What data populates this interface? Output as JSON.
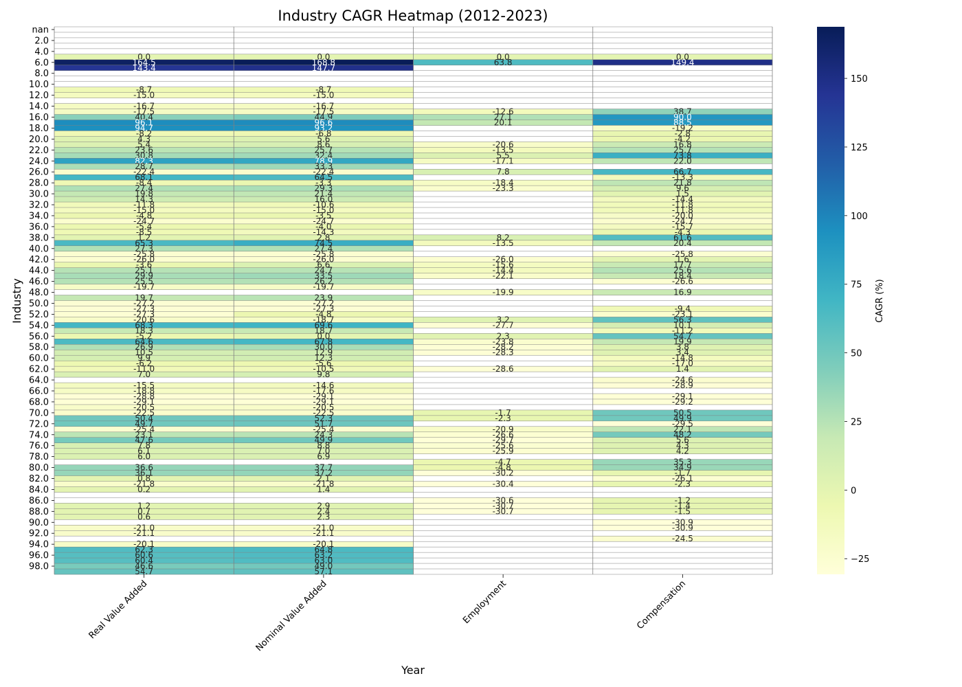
{
  "chart_data": {
    "type": "heatmap",
    "title": "Industry CAGR Heatmap (2012-2023)",
    "xlabel": "Year",
    "ylabel": "Industry",
    "colorbar_label": "CAGR (%)",
    "colorbar_ticks": [
      "−25",
      "0",
      "25",
      "50",
      "75",
      "100",
      "125",
      "150"
    ],
    "colorbar_tick_values": [
      -25,
      0,
      25,
      50,
      75,
      100,
      125,
      150
    ],
    "vmin": -30.7,
    "vmax": 168.8,
    "colormap": "YlGnBu",
    "colormap_stops": [
      "#ffffd9",
      "#edf8b1",
      "#c7e9b4",
      "#7fcdbb",
      "#41b6c4",
      "#1d91c0",
      "#225ea8",
      "#253494",
      "#081d58"
    ],
    "annotation_colors": {
      "dark": "#262626",
      "light": "#ffffff"
    },
    "gridline_color": "#808080",
    "columns": [
      "Real Value Added",
      "Nominal Value Added",
      "Employment",
      "Compensation"
    ],
    "row_tick_labels": [
      "nan",
      "2.0",
      "4.0",
      "6.0",
      "8.0",
      "10.0",
      "12.0",
      "14.0",
      "16.0",
      "18.0",
      "20.0",
      "22.0",
      "24.0",
      "26.0",
      "28.0",
      "30.0",
      "32.0",
      "34.0",
      "36.0",
      "38.0",
      "40.0",
      "42.0",
      "44.0",
      "46.0",
      "48.0",
      "50.0",
      "52.0",
      "54.0",
      "56.0",
      "58.0",
      "60.0",
      "62.0",
      "64.0",
      "66.0",
      "68.0",
      "70.0",
      "72.0",
      "74.0",
      "76.0",
      "78.0",
      "80.0",
      "82.0",
      "84.0",
      "86.0",
      "88.0",
      "90.0",
      "92.0",
      "94.0",
      "96.0",
      "98.0"
    ],
    "values": [
      [
        null,
        null,
        null,
        null
      ],
      [
        null,
        null,
        null,
        null
      ],
      [
        null,
        null,
        null,
        null
      ],
      [
        null,
        null,
        null,
        null
      ],
      [
        null,
        null,
        null,
        null
      ],
      [
        0.0,
        0.0,
        0.0,
        0.0
      ],
      [
        164.5,
        168.8,
        63.8,
        149.4
      ],
      [
        143.4,
        147.7,
        null,
        null
      ],
      [
        null,
        null,
        null,
        null
      ],
      [
        null,
        null,
        null,
        null
      ],
      [
        null,
        null,
        null,
        null
      ],
      [
        -8.7,
        -8.7,
        null,
        null
      ],
      [
        -15.0,
        -15.0,
        null,
        null
      ],
      [
        null,
        null,
        null,
        null
      ],
      [
        -16.7,
        -16.7,
        null,
        null
      ],
      [
        -17.5,
        -17.5,
        -12.6,
        38.7
      ],
      [
        40.4,
        44.9,
        27.1,
        90.0
      ],
      [
        96.1,
        96.6,
        20.1,
        88.5
      ],
      [
        94.7,
        93.2,
        null,
        -19.2
      ],
      [
        -8.2,
        -6.8,
        null,
        -2.8
      ],
      [
        4.3,
        5.6,
        null,
        -4.2
      ],
      [
        5.4,
        8.6,
        -20.6,
        16.8
      ],
      [
        23.6,
        25.7,
        -13.5,
        25.7
      ],
      [
        30.8,
        32.4,
        5.5,
        73.8
      ],
      [
        82.3,
        78.9,
        -17.1,
        22.0
      ],
      [
        28.7,
        33.3,
        null,
        null
      ],
      [
        -22.4,
        -22.4,
        7.8,
        66.7
      ],
      [
        68.1,
        64.5,
        null,
        -13.3
      ],
      [
        -8.4,
        -3.3,
        -18.4,
        21.8
      ],
      [
        27.4,
        29.3,
        -23.3,
        9.6
      ],
      [
        19.8,
        21.4,
        null,
        1.5
      ],
      [
        14.3,
        16.0,
        null,
        -14.4
      ],
      [
        -11.8,
        -10.6,
        null,
        -11.8
      ],
      [
        -15.0,
        -15.0,
        null,
        -11.8
      ],
      [
        -4.8,
        -3.5,
        null,
        -20.0
      ],
      [
        -24.7,
        -24.7,
        null,
        -24.7
      ],
      [
        -5.4,
        -4.0,
        null,
        -15.7
      ],
      [
        -8.5,
        -14.3,
        null,
        -4.3
      ],
      [
        1.2,
        2.8,
        8.2,
        61.6
      ],
      [
        65.3,
        74.5,
        -13.5,
        20.4
      ],
      [
        27.3,
        27.4,
        null,
        null
      ],
      [
        -25.8,
        -25.8,
        null,
        -25.8
      ],
      [
        -26.0,
        -26.0,
        -26.0,
        1.6
      ],
      [
        -3.6,
        6.6,
        -15.6,
        17.7
      ],
      [
        25.1,
        24.7,
        -14.4,
        25.6
      ],
      [
        29.9,
        33.5,
        -22.1,
        18.4
      ],
      [
        25.5,
        26.2,
        null,
        -26.6
      ],
      [
        -19.7,
        -19.7,
        null,
        null
      ],
      [
        null,
        null,
        -19.9,
        16.9
      ],
      [
        19.7,
        23.9,
        null,
        null
      ],
      [
        -27.2,
        -27.2,
        null,
        null
      ],
      [
        -27.3,
        -27.3,
        null,
        -9.4
      ],
      [
        -27.3,
        -4.8,
        null,
        -23.1
      ],
      [
        -20.6,
        -18.7,
        3.2,
        56.3
      ],
      [
        68.3,
        69.6,
        -27.7,
        10.1
      ],
      [
        18.3,
        18.7,
        null,
        -11.2
      ],
      [
        -5.2,
        0.0,
        2.3,
        54.7
      ],
      [
        64.6,
        67.8,
        -23.8,
        19.9
      ],
      [
        26.9,
        30.0,
        -28.2,
        3.8
      ],
      [
        10.5,
        12.9,
        -28.3,
        3.4
      ],
      [
        9.9,
        12.3,
        null,
        -14.8
      ],
      [
        -6.2,
        -5.6,
        null,
        -17.0
      ],
      [
        -11.0,
        -10.5,
        -28.6,
        1.4
      ],
      [
        7.0,
        9.8,
        null,
        null
      ],
      [
        null,
        null,
        null,
        -24.6
      ],
      [
        -15.5,
        -14.6,
        null,
        -28.9
      ],
      [
        -18.8,
        -17.6,
        null,
        null
      ],
      [
        -28.8,
        -29.1,
        null,
        -29.1
      ],
      [
        -29.1,
        -29.1,
        null,
        -29.2
      ],
      [
        -20.5,
        -20.5,
        null,
        null
      ],
      [
        -22.5,
        -22.5,
        -1.7,
        50.5
      ],
      [
        50.4,
        52.3,
        -2.3,
        49.9
      ],
      [
        49.7,
        51.7,
        null,
        -29.5
      ],
      [
        -25.4,
        -25.4,
        -20.9,
        22.1
      ],
      [
        23.1,
        24.3,
        -26.6,
        48.2
      ],
      [
        47.6,
        49.9,
        -29.7,
        5.6
      ],
      [
        7.8,
        8.8,
        -25.6,
        4.3
      ],
      [
        6.1,
        7.0,
        -25.9,
        4.2
      ],
      [
        6.0,
        6.9,
        null,
        null
      ],
      [
        null,
        null,
        -4.7,
        35.3
      ],
      [
        36.6,
        37.7,
        -4.8,
        34.9
      ],
      [
        36.1,
        37.2,
        -30.2,
        -1.7
      ],
      [
        0.8,
        2.1,
        null,
        -26.1
      ],
      [
        -21.8,
        -21.8,
        -30.4,
        -2.3
      ],
      [
        0.2,
        1.4,
        null,
        null
      ],
      [
        null,
        null,
        null,
        null
      ],
      [
        null,
        null,
        -30.6,
        -1.2
      ],
      [
        1.2,
        2.9,
        -30.7,
        -1.4
      ],
      [
        0.7,
        2.4,
        -30.7,
        -1.5
      ],
      [
        0.6,
        2.3,
        null,
        null
      ],
      [
        null,
        null,
        null,
        -30.9
      ],
      [
        -21.0,
        -21.0,
        null,
        -30.9
      ],
      [
        -21.1,
        -21.1,
        null,
        null
      ],
      [
        null,
        null,
        null,
        -24.5
      ],
      [
        -20.1,
        -20.1,
        null,
        null
      ],
      [
        62.3,
        64.8,
        null,
        null
      ],
      [
        60.6,
        63.2,
        null,
        null
      ],
      [
        60.4,
        63.0,
        null,
        null
      ],
      [
        46.6,
        49.0,
        null,
        null
      ],
      [
        54.7,
        57.1,
        null,
        null
      ]
    ]
  }
}
